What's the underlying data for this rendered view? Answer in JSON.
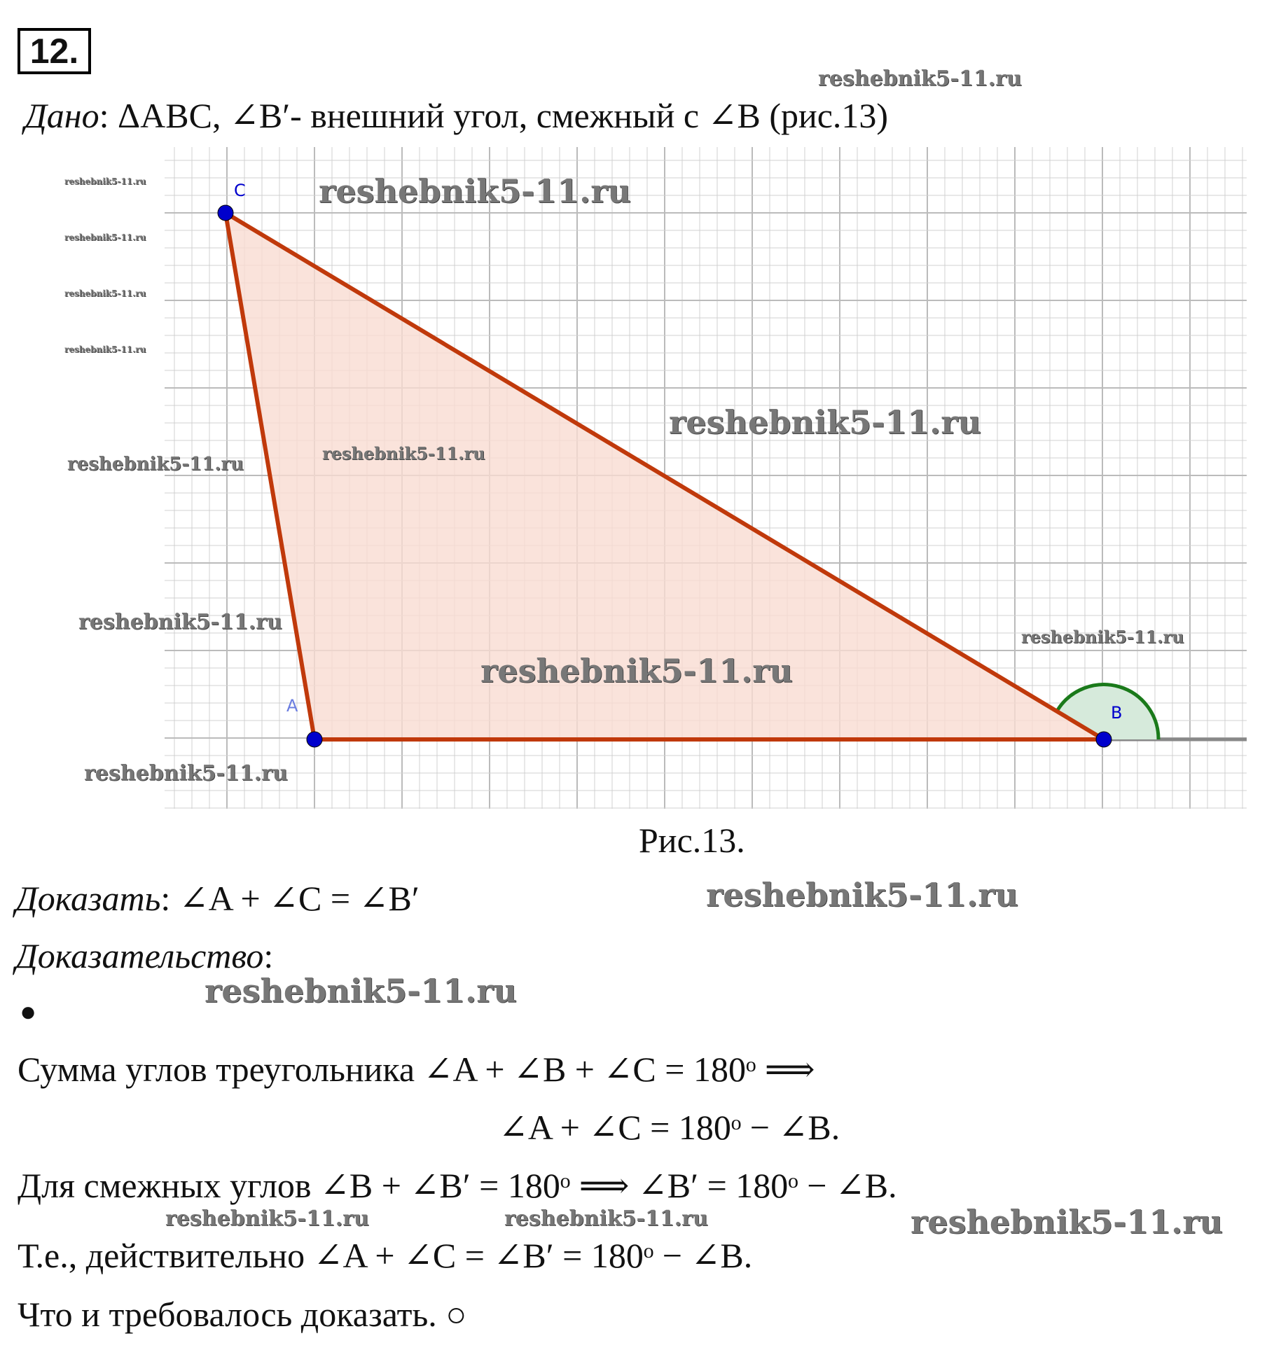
{
  "problem_number": "12.",
  "given_label": "Дано",
  "given_text": ": ΔABC, ∠B′- внешний угол, смежный с ∠B (рис.13)",
  "figure": {
    "caption": "Рис.13.",
    "points": {
      "A": "A",
      "B": "B",
      "C": "C"
    },
    "colors": {
      "triangle_stroke": "#c0390b",
      "triangle_fill": "#f9dcd2",
      "angle_arc": "#1a7a1a",
      "point": "#0000cc",
      "grid": "#d0d0d0"
    }
  },
  "prove_label": "Доказать",
  "prove_text": ": ∠A + ∠C = ∠B′",
  "proof_label": "Доказательство",
  "proof_colon": ":",
  "bullet": "●",
  "lines": [
    "Сумма углов треугольника ∠A + ∠B + ∠C = 180ᵒ ⟹",
    "∠A + ∠C = 180ᵒ − ∠B.",
    "Для смежных углов ∠B + ∠B′ = 180ᵒ ⟹ ∠B′ = 180ᵒ − ∠B.",
    "Т.е., действительно ∠A + ∠C = ∠B′ = 180ᵒ − ∠B.",
    "Что и требовалось доказать. ○"
  ],
  "watermark": "reshebnik5-11.ru"
}
